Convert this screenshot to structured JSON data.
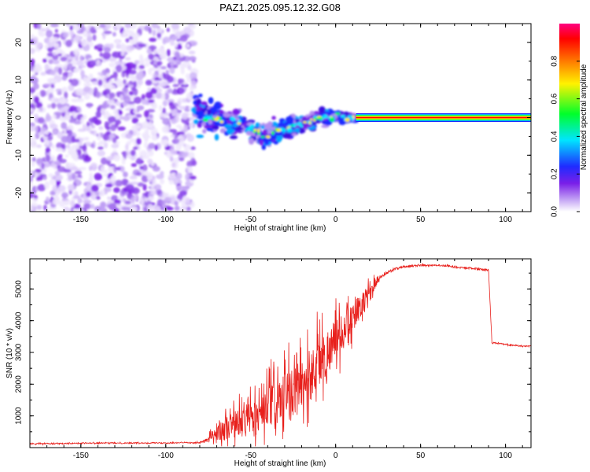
{
  "figure": {
    "title": "PAZ1.2025.095.12.32.G08"
  },
  "colors": {
    "snr_line": "#e8201c",
    "axis": "#000000",
    "background": "#ffffff"
  },
  "chart_data": [
    {
      "type": "heatmap",
      "xlabel": "Height of straight line (km)",
      "ylabel": "Frequency (Hz)",
      "xlim": [
        -180,
        115
      ],
      "ylim": [
        -25,
        25
      ],
      "xticks": [
        -150,
        -100,
        -50,
        0,
        50,
        100
      ],
      "yticks": [
        -20,
        -10,
        0,
        10,
        20
      ],
      "colorbar": {
        "label": "Normalized spectral amplitude",
        "range": [
          0,
          1
        ],
        "ticks": [
          "0.0",
          "0.2",
          "0.4",
          "0.6",
          "0.8"
        ],
        "colors": [
          "#ffffff",
          "#c7a9f5",
          "#7a1fe8",
          "#1f2bff",
          "#00e5ff",
          "#00ff2a",
          "#fff200",
          "#ff7a00",
          "#ff0000",
          "#ff0080"
        ]
      },
      "regions": [
        {
          "x_range": [
            -180,
            -83
          ],
          "frequency_range": [
            -25,
            25
          ],
          "amplitude": "low",
          "pattern": "diffuse noise"
        },
        {
          "x_range": [
            -83,
            12
          ],
          "frequency_profile": [
            [
              -83,
              1
            ],
            [
              -75,
              0
            ],
            [
              -60,
              -1
            ],
            [
              -50,
              -3
            ],
            [
              -40,
              -5
            ],
            [
              -30,
              -3
            ],
            [
              -20,
              -2
            ],
            [
              -10,
              0
            ],
            [
              0,
              0
            ],
            [
              12,
              0
            ]
          ],
          "amplitude": "medium",
          "pattern": "blobby band"
        },
        {
          "x_range": [
            12,
            115
          ],
          "frequency": 0,
          "amplitude": "high",
          "pattern": "narrow line"
        }
      ]
    },
    {
      "type": "line",
      "xlabel": "Height of straight line (km)",
      "ylabel": "SNR (10 * v/v)",
      "xlim": [
        -180,
        115
      ],
      "ylim": [
        0,
        5950
      ],
      "xticks": [
        -150,
        -100,
        -50,
        0,
        50,
        100
      ],
      "yticks": [
        1000,
        2000,
        3000,
        4000,
        5000
      ],
      "series": [
        {
          "x": [
            -180,
            -150,
            -100,
            -80,
            -75,
            -70,
            -65,
            -60,
            -55,
            -50,
            -45,
            -40,
            -35,
            -30,
            -25,
            -20,
            -15,
            -10,
            -5,
            0,
            5,
            10,
            15,
            20,
            25,
            30,
            35,
            40,
            50,
            60,
            70,
            80,
            90,
            92,
            93,
            95,
            100,
            110,
            115
          ],
          "y": [
            120,
            140,
            150,
            160,
            250,
            500,
            600,
            700,
            800,
            900,
            1000,
            1250,
            1400,
            1500,
            1700,
            2000,
            2300,
            2700,
            3000,
            3400,
            3700,
            4100,
            4500,
            4900,
            5300,
            5500,
            5650,
            5700,
            5750,
            5750,
            5700,
            5650,
            5600,
            3300,
            3300,
            3300,
            3250,
            3200,
            3200
          ],
          "spread": [
            70,
            70,
            70,
            80,
            250,
            600,
            800,
            900,
            1100,
            1200,
            1300,
            1400,
            1600,
            1700,
            1800,
            1900,
            1900,
            1800,
            1600,
            1400,
            1200,
            1000,
            800,
            500,
            300,
            200,
            150,
            120,
            120,
            120,
            120,
            120,
            120,
            80,
            80,
            80,
            80,
            80,
            80
          ]
        }
      ]
    }
  ]
}
